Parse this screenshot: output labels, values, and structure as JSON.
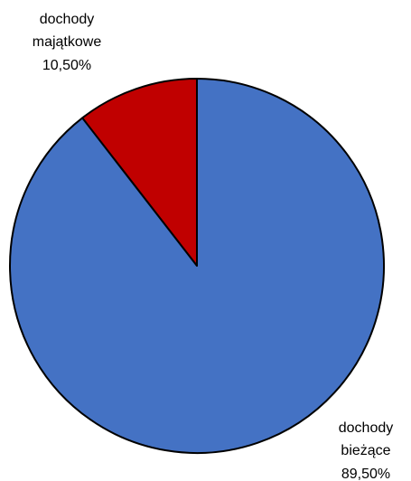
{
  "chart_data": {
    "type": "pie",
    "title": "",
    "slices": [
      {
        "label_lines": [
          "dochody",
          "majątkowe"
        ],
        "value": 10.5,
        "value_text": "10,50%",
        "color": "#c00000"
      },
      {
        "label_lines": [
          "dochody",
          "bieżące"
        ],
        "value": 89.5,
        "value_text": "89,50%",
        "color": "#4472c4"
      }
    ],
    "start_angle": "12 o'clock",
    "direction": "counter-clockwise",
    "outline_color": "#000000",
    "legend": "none"
  }
}
